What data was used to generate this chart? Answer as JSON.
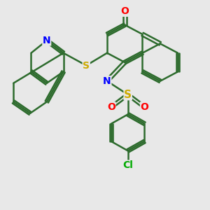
{
  "bg_color": "#e8e8e8",
  "bond_color": "#2d6b2d",
  "bond_width": 1.8,
  "atom_colors": {
    "N": "#0000ff",
    "O": "#ff0000",
    "S": "#ccaa00",
    "Cl": "#00aa00",
    "C": "#2d6b2d"
  },
  "font_size": 10,
  "fig_size": [
    3.0,
    3.0
  ],
  "dpi": 100
}
